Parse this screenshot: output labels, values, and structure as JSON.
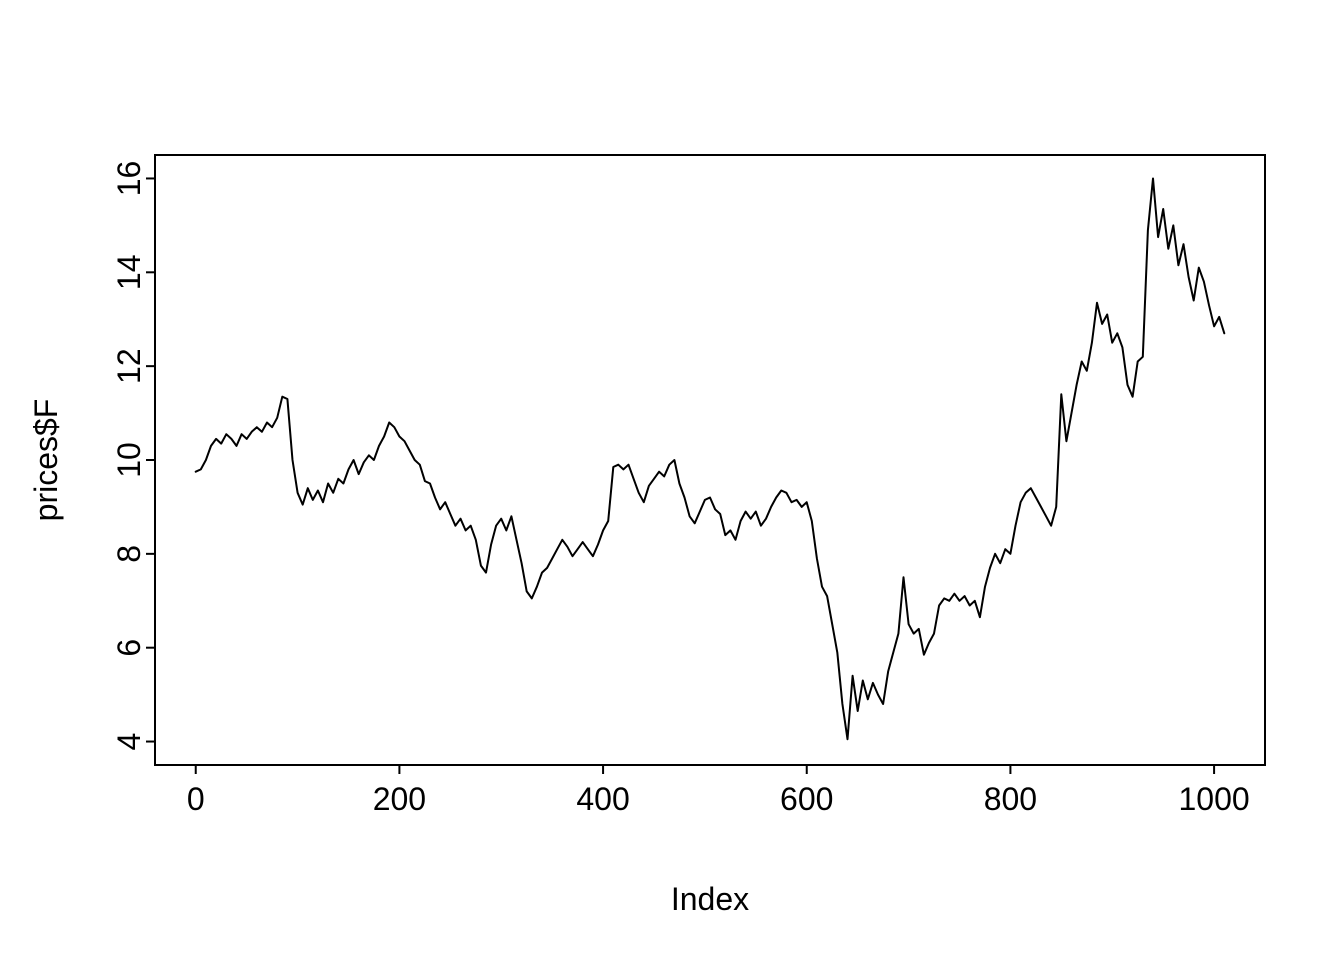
{
  "chart_data": {
    "type": "line",
    "title": "",
    "xlabel": "Index",
    "ylabel": "prices$F",
    "legend": "none",
    "grid": false,
    "background": "#ffffff",
    "line_color": "#000000",
    "xlim": [
      -40,
      1050
    ],
    "ylim": [
      3.5,
      16.5
    ],
    "x_ticks": [
      0,
      200,
      400,
      600,
      800,
      1000
    ],
    "y_ticks": [
      4,
      6,
      8,
      10,
      12,
      14,
      16
    ],
    "series": [
      {
        "name": "prices$F",
        "points": [
          [
            0,
            9.75
          ],
          [
            5,
            9.8
          ],
          [
            10,
            10.0
          ],
          [
            15,
            10.3
          ],
          [
            20,
            10.45
          ],
          [
            25,
            10.35
          ],
          [
            30,
            10.55
          ],
          [
            35,
            10.45
          ],
          [
            40,
            10.3
          ],
          [
            45,
            10.55
          ],
          [
            50,
            10.45
          ],
          [
            55,
            10.6
          ],
          [
            60,
            10.7
          ],
          [
            65,
            10.6
          ],
          [
            70,
            10.8
          ],
          [
            75,
            10.7
          ],
          [
            80,
            10.9
          ],
          [
            85,
            11.35
          ],
          [
            90,
            11.3
          ],
          [
            95,
            10.0
          ],
          [
            100,
            9.3
          ],
          [
            105,
            9.05
          ],
          [
            110,
            9.4
          ],
          [
            115,
            9.15
          ],
          [
            120,
            9.35
          ],
          [
            125,
            9.1
          ],
          [
            130,
            9.5
          ],
          [
            135,
            9.3
          ],
          [
            140,
            9.6
          ],
          [
            145,
            9.5
          ],
          [
            150,
            9.8
          ],
          [
            155,
            10.0
          ],
          [
            160,
            9.7
          ],
          [
            165,
            9.95
          ],
          [
            170,
            10.1
          ],
          [
            175,
            10.0
          ],
          [
            180,
            10.3
          ],
          [
            185,
            10.5
          ],
          [
            190,
            10.8
          ],
          [
            195,
            10.7
          ],
          [
            200,
            10.5
          ],
          [
            205,
            10.4
          ],
          [
            210,
            10.2
          ],
          [
            215,
            10.0
          ],
          [
            220,
            9.9
          ],
          [
            225,
            9.55
          ],
          [
            230,
            9.5
          ],
          [
            235,
            9.2
          ],
          [
            240,
            8.95
          ],
          [
            245,
            9.1
          ],
          [
            250,
            8.85
          ],
          [
            255,
            8.6
          ],
          [
            260,
            8.75
          ],
          [
            265,
            8.5
          ],
          [
            270,
            8.6
          ],
          [
            275,
            8.3
          ],
          [
            280,
            7.75
          ],
          [
            285,
            7.6
          ],
          [
            290,
            8.2
          ],
          [
            295,
            8.6
          ],
          [
            300,
            8.75
          ],
          [
            305,
            8.5
          ],
          [
            310,
            8.8
          ],
          [
            315,
            8.3
          ],
          [
            320,
            7.8
          ],
          [
            325,
            7.2
          ],
          [
            330,
            7.05
          ],
          [
            335,
            7.3
          ],
          [
            340,
            7.6
          ],
          [
            345,
            7.7
          ],
          [
            350,
            7.9
          ],
          [
            355,
            8.1
          ],
          [
            360,
            8.3
          ],
          [
            365,
            8.15
          ],
          [
            370,
            7.95
          ],
          [
            375,
            8.1
          ],
          [
            380,
            8.25
          ],
          [
            385,
            8.1
          ],
          [
            390,
            7.95
          ],
          [
            395,
            8.2
          ],
          [
            400,
            8.5
          ],
          [
            405,
            8.7
          ],
          [
            410,
            9.85
          ],
          [
            415,
            9.9
          ],
          [
            420,
            9.8
          ],
          [
            425,
            9.9
          ],
          [
            430,
            9.6
          ],
          [
            435,
            9.3
          ],
          [
            440,
            9.1
          ],
          [
            445,
            9.45
          ],
          [
            450,
            9.6
          ],
          [
            455,
            9.75
          ],
          [
            460,
            9.65
          ],
          [
            465,
            9.9
          ],
          [
            470,
            10.0
          ],
          [
            475,
            9.5
          ],
          [
            480,
            9.2
          ],
          [
            485,
            8.8
          ],
          [
            490,
            8.65
          ],
          [
            495,
            8.9
          ],
          [
            500,
            9.15
          ],
          [
            505,
            9.2
          ],
          [
            510,
            8.95
          ],
          [
            515,
            8.85
          ],
          [
            520,
            8.4
          ],
          [
            525,
            8.5
          ],
          [
            530,
            8.3
          ],
          [
            535,
            8.7
          ],
          [
            540,
            8.9
          ],
          [
            545,
            8.75
          ],
          [
            550,
            8.9
          ],
          [
            555,
            8.6
          ],
          [
            560,
            8.75
          ],
          [
            565,
            9.0
          ],
          [
            570,
            9.2
          ],
          [
            575,
            9.35
          ],
          [
            580,
            9.3
          ],
          [
            585,
            9.1
          ],
          [
            590,
            9.15
          ],
          [
            595,
            9.0
          ],
          [
            600,
            9.1
          ],
          [
            605,
            8.7
          ],
          [
            610,
            7.9
          ],
          [
            615,
            7.3
          ],
          [
            620,
            7.1
          ],
          [
            625,
            6.5
          ],
          [
            630,
            5.9
          ],
          [
            635,
            4.8
          ],
          [
            640,
            4.05
          ],
          [
            645,
            5.4
          ],
          [
            650,
            4.65
          ],
          [
            655,
            5.3
          ],
          [
            660,
            4.9
          ],
          [
            665,
            5.25
          ],
          [
            670,
            5.0
          ],
          [
            675,
            4.8
          ],
          [
            680,
            5.5
          ],
          [
            685,
            5.9
          ],
          [
            690,
            6.3
          ],
          [
            695,
            7.5
          ],
          [
            700,
            6.5
          ],
          [
            705,
            6.3
          ],
          [
            710,
            6.4
          ],
          [
            715,
            5.85
          ],
          [
            720,
            6.1
          ],
          [
            725,
            6.3
          ],
          [
            730,
            6.9
          ],
          [
            735,
            7.05
          ],
          [
            740,
            7.0
          ],
          [
            745,
            7.15
          ],
          [
            750,
            7.0
          ],
          [
            755,
            7.1
          ],
          [
            760,
            6.9
          ],
          [
            765,
            7.0
          ],
          [
            770,
            6.65
          ],
          [
            775,
            7.3
          ],
          [
            780,
            7.7
          ],
          [
            785,
            8.0
          ],
          [
            790,
            7.8
          ],
          [
            795,
            8.1
          ],
          [
            800,
            8.0
          ],
          [
            805,
            8.6
          ],
          [
            810,
            9.1
          ],
          [
            815,
            9.3
          ],
          [
            820,
            9.4
          ],
          [
            825,
            9.2
          ],
          [
            830,
            9.0
          ],
          [
            835,
            8.8
          ],
          [
            840,
            8.6
          ],
          [
            845,
            9.0
          ],
          [
            850,
            11.4
          ],
          [
            855,
            10.4
          ],
          [
            860,
            11.0
          ],
          [
            865,
            11.6
          ],
          [
            870,
            12.1
          ],
          [
            875,
            11.9
          ],
          [
            880,
            12.5
          ],
          [
            885,
            13.35
          ],
          [
            890,
            12.9
          ],
          [
            895,
            13.1
          ],
          [
            900,
            12.5
          ],
          [
            905,
            12.7
          ],
          [
            910,
            12.4
          ],
          [
            915,
            11.6
          ],
          [
            920,
            11.35
          ],
          [
            925,
            12.1
          ],
          [
            930,
            12.2
          ],
          [
            935,
            14.9
          ],
          [
            940,
            16.0
          ],
          [
            945,
            14.75
          ],
          [
            950,
            15.35
          ],
          [
            955,
            14.5
          ],
          [
            960,
            15.0
          ],
          [
            965,
            14.15
          ],
          [
            970,
            14.6
          ],
          [
            975,
            13.9
          ],
          [
            980,
            13.4
          ],
          [
            985,
            14.1
          ],
          [
            990,
            13.8
          ],
          [
            995,
            13.3
          ],
          [
            1000,
            12.85
          ],
          [
            1005,
            13.05
          ],
          [
            1010,
            12.7
          ]
        ]
      }
    ]
  }
}
